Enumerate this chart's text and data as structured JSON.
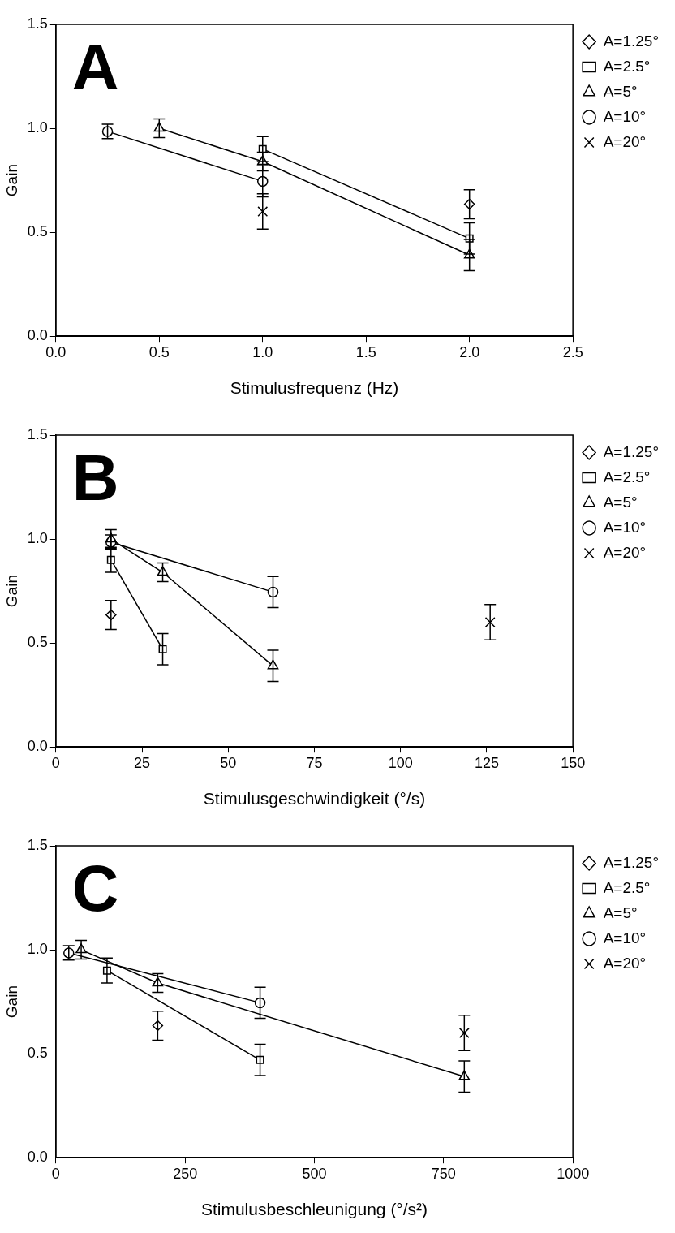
{
  "chart_data": [
    {
      "type": "line",
      "title": "A",
      "xlabel": "Stimulusfrequenz (Hz)",
      "ylabel": "Gain",
      "xlim": [
        0,
        2.5
      ],
      "xticks": [
        {
          "value": 0,
          "label": "0.0"
        },
        {
          "value": 0.5,
          "label": "0.5"
        },
        {
          "value": 1,
          "label": "1.0"
        },
        {
          "value": 1.5,
          "label": "1.5"
        },
        {
          "value": 2,
          "label": "2.0"
        },
        {
          "value": 2.5,
          "label": "2.5"
        }
      ],
      "ylim": [
        0,
        1.5
      ],
      "yticks": [
        {
          "value": 0,
          "label": "0.0"
        },
        {
          "value": 0.5,
          "label": "0.5"
        },
        {
          "value": 1,
          "label": "1.0"
        },
        {
          "value": 1.5,
          "label": "1.5"
        }
      ],
      "grid": false,
      "legend": "right",
      "line_style": "solid",
      "series": [
        {
          "name": "A=1.25°",
          "color": "#000000",
          "marker": "diamond",
          "x": [
            2
          ],
          "values": [
            0.635
          ],
          "errors": [
            0.07
          ]
        },
        {
          "name": "A=2.5°",
          "color": "#000000",
          "marker": "square",
          "x": [
            1,
            2
          ],
          "values": [
            0.9,
            0.47
          ],
          "errors": [
            0.06,
            0.075
          ]
        },
        {
          "name": "A=5°",
          "color": "#000000",
          "marker": "triangle",
          "x": [
            0.5,
            1,
            2
          ],
          "values": [
            1.0,
            0.84,
            0.39
          ],
          "errors": [
            0.045,
            0.045,
            0.075
          ]
        },
        {
          "name": "A=10°",
          "color": "#000000",
          "marker": "circle",
          "x": [
            0.25,
            1
          ],
          "values": [
            0.985,
            0.745
          ],
          "errors": [
            0.035,
            0.075
          ]
        },
        {
          "name": "A=20°",
          "color": "#000000",
          "marker": "cross",
          "x": [
            1
          ],
          "values": [
            0.6
          ],
          "errors": [
            0.085
          ]
        }
      ]
    },
    {
      "type": "line",
      "title": "B",
      "xlabel": "Stimulusgeschwindigkeit (°/s)",
      "ylabel": "Gain",
      "xlim": [
        0,
        150
      ],
      "xticks": [
        0,
        25,
        50,
        75,
        100,
        125,
        150
      ],
      "ylim": [
        0,
        1.5
      ],
      "yticks": [
        {
          "value": 0,
          "label": "0.0"
        },
        {
          "value": 0.5,
          "label": "0.5"
        },
        {
          "value": 1,
          "label": "1.0"
        },
        {
          "value": 1.5,
          "label": "1.5"
        }
      ],
      "grid": false,
      "legend": "right",
      "line_style": "solid",
      "series": [
        {
          "name": "A=1.25°",
          "color": "#000000",
          "marker": "diamond",
          "x": [
            16
          ],
          "values": [
            0.635
          ],
          "errors": [
            0.07
          ]
        },
        {
          "name": "A=2.5°",
          "color": "#000000",
          "marker": "square",
          "x": [
            16,
            31
          ],
          "values": [
            0.9,
            0.47
          ],
          "errors": [
            0.06,
            0.075
          ]
        },
        {
          "name": "A=5°",
          "color": "#000000",
          "marker": "triangle",
          "x": [
            16,
            31,
            63
          ],
          "values": [
            1.0,
            0.84,
            0.39
          ],
          "errors": [
            0.045,
            0.045,
            0.075
          ]
        },
        {
          "name": "A=10°",
          "color": "#000000",
          "marker": "circle",
          "x": [
            16,
            63
          ],
          "values": [
            0.985,
            0.745
          ],
          "errors": [
            0.035,
            0.075
          ]
        },
        {
          "name": "A=20°",
          "color": "#000000",
          "marker": "cross",
          "x": [
            126
          ],
          "values": [
            0.6
          ],
          "errors": [
            0.085
          ]
        }
      ]
    },
    {
      "type": "line",
      "title": "C",
      "xlabel": "Stimulusbeschleunigung (°/s²)",
      "ylabel": "Gain",
      "xlim": [
        0,
        1000
      ],
      "xticks": [
        0,
        250,
        500,
        750,
        1000
      ],
      "ylim": [
        0,
        1.5
      ],
      "yticks": [
        {
          "value": 0,
          "label": "0.0"
        },
        {
          "value": 0.5,
          "label": "0.5"
        },
        {
          "value": 1,
          "label": "1.0"
        },
        {
          "value": 1.5,
          "label": "1.5"
        }
      ],
      "grid": false,
      "legend": "right",
      "line_style": "solid",
      "series": [
        {
          "name": "A=1.25°",
          "color": "#000000",
          "marker": "diamond",
          "x": [
            197
          ],
          "values": [
            0.635
          ],
          "errors": [
            0.07
          ]
        },
        {
          "name": "A=2.5°",
          "color": "#000000",
          "marker": "square",
          "x": [
            99,
            395
          ],
          "values": [
            0.9,
            0.47
          ],
          "errors": [
            0.06,
            0.075
          ]
        },
        {
          "name": "A=5°",
          "color": "#000000",
          "marker": "triangle",
          "x": [
            49,
            197,
            790
          ],
          "values": [
            1.0,
            0.84,
            0.39
          ],
          "errors": [
            0.045,
            0.045,
            0.075
          ]
        },
        {
          "name": "A=10°",
          "color": "#000000",
          "marker": "circle",
          "x": [
            25,
            395
          ],
          "values": [
            0.985,
            0.745
          ],
          "errors": [
            0.035,
            0.075
          ]
        },
        {
          "name": "A=20°",
          "color": "#000000",
          "marker": "cross",
          "x": [
            790
          ],
          "values": [
            0.6
          ],
          "errors": [
            0.085
          ]
        }
      ]
    }
  ]
}
